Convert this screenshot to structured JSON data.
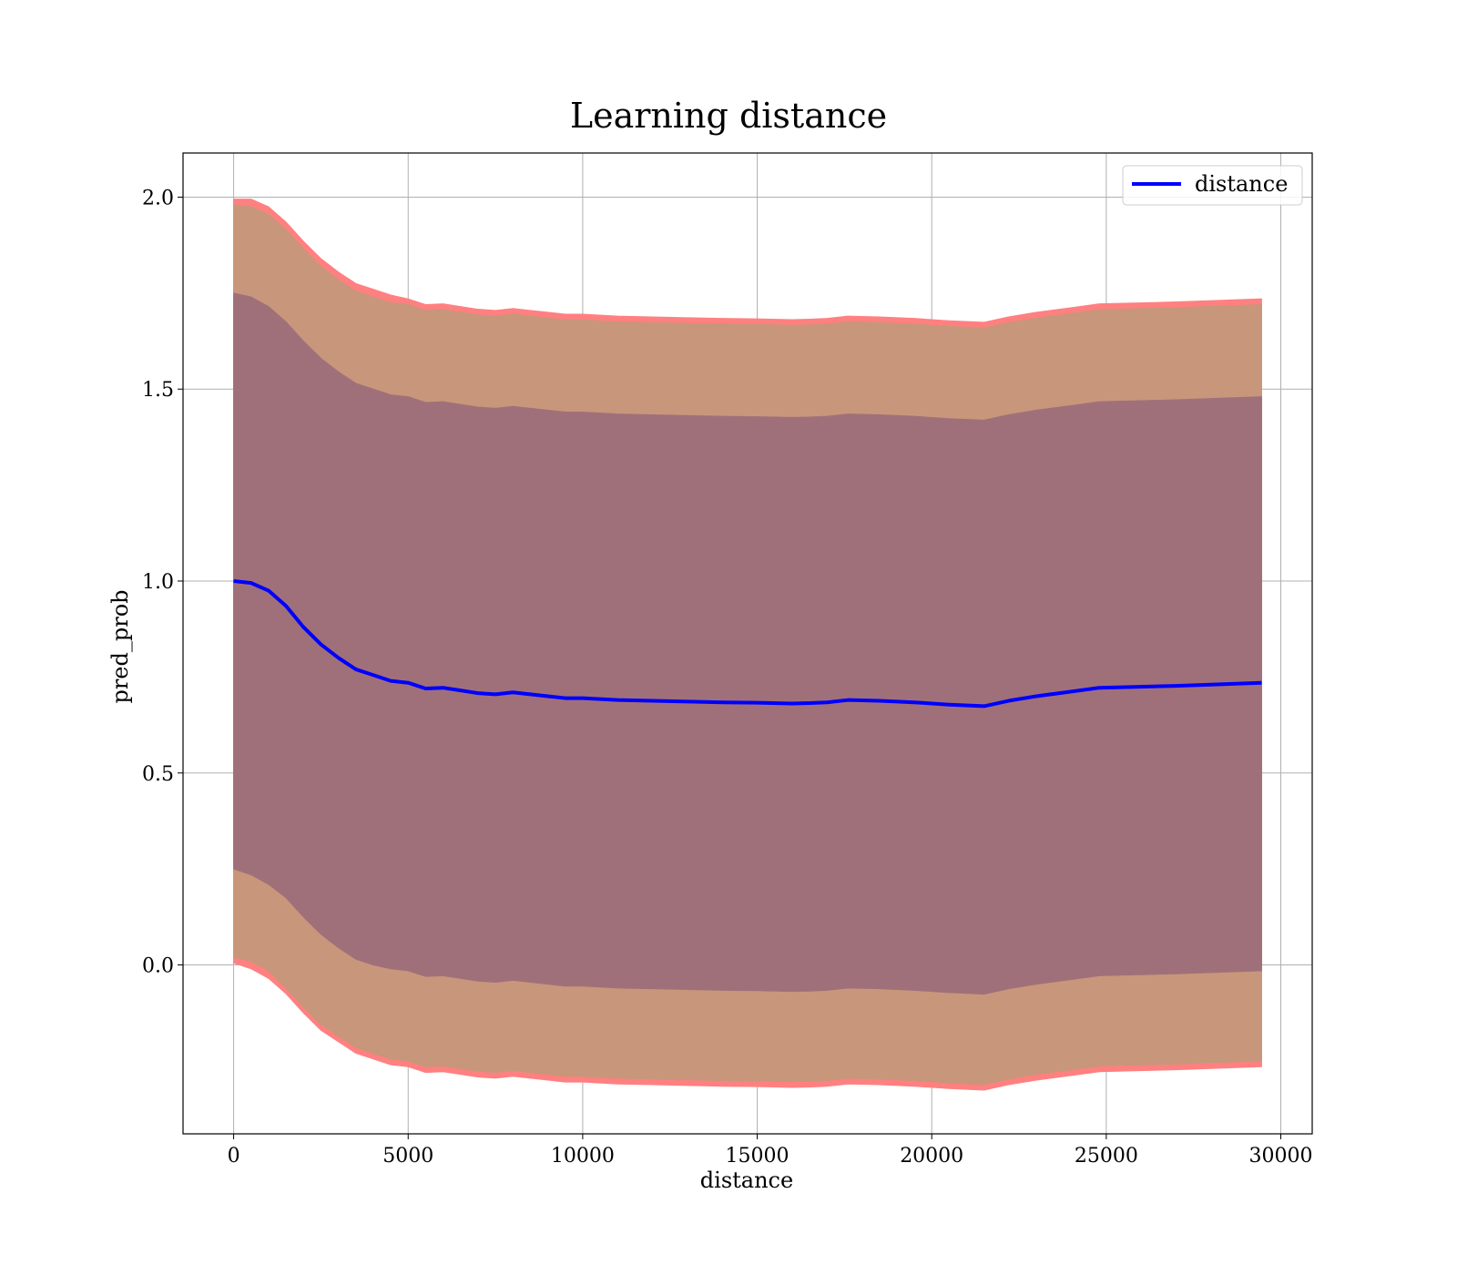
{
  "chart_data": {
    "type": "line",
    "title": "Learning distance",
    "xlabel": "distance",
    "ylabel": "pred_prob",
    "xlim": [
      -1450,
      30900
    ],
    "ylim": [
      -0.44,
      2.115
    ],
    "xticks": [
      0,
      5000,
      10000,
      15000,
      20000,
      25000,
      30000
    ],
    "xtick_labels": [
      "0",
      "5000",
      "10000",
      "15000",
      "20000",
      "25000",
      "30000"
    ],
    "yticks": [
      0.0,
      0.5,
      1.0,
      1.5,
      2.0
    ],
    "ytick_labels": [
      "0.0",
      "0.5",
      "1.0",
      "1.5",
      "2.0"
    ],
    "grid": true,
    "legend": {
      "position": "top-right",
      "entries": [
        "distance"
      ]
    },
    "colors": {
      "line": "#0000ff",
      "band_outer": "#ff8080",
      "band_middle": "#c8967a",
      "band_inner": "#a0707a"
    },
    "x": [
      0,
      500,
      1000,
      1500,
      2000,
      2500,
      3000,
      3500,
      4000,
      4500,
      5000,
      5500,
      6000,
      6500,
      7000,
      7500,
      8000,
      8500,
      9000,
      9500,
      10000,
      11000,
      12000,
      13000,
      14000,
      15000,
      16000,
      16500,
      17000,
      17600,
      18500,
      19500,
      20500,
      21500,
      22200,
      23000,
      24000,
      24800,
      27000,
      29450
    ],
    "series": [
      {
        "name": "distance",
        "values": [
          1.0,
          0.995,
          0.975,
          0.935,
          0.88,
          0.835,
          0.8,
          0.77,
          0.755,
          0.74,
          0.735,
          0.72,
          0.722,
          0.715,
          0.708,
          0.705,
          0.71,
          0.705,
          0.7,
          0.695,
          0.695,
          0.69,
          0.688,
          0.686,
          0.684,
          0.683,
          0.681,
          0.682,
          0.684,
          0.69,
          0.688,
          0.684,
          0.678,
          0.674,
          0.688,
          0.7,
          0.712,
          0.722,
          0.727,
          0.735
        ]
      }
    ],
    "bands": [
      {
        "lower": [
          0.005,
          -0.01,
          -0.035,
          -0.075,
          -0.125,
          -0.17,
          -0.2,
          -0.23,
          -0.245,
          -0.26,
          -0.265,
          -0.28,
          -0.278,
          -0.285,
          -0.292,
          -0.295,
          -0.29,
          -0.295,
          -0.3,
          -0.305,
          -0.305,
          -0.31,
          -0.312,
          -0.314,
          -0.316,
          -0.317,
          -0.319,
          -0.318,
          -0.316,
          -0.31,
          -0.312,
          -0.316,
          -0.322,
          -0.326,
          -0.312,
          -0.3,
          -0.288,
          -0.278,
          -0.273,
          -0.265
        ],
        "upper": [
          1.995,
          1.995,
          1.975,
          1.935,
          1.885,
          1.84,
          1.805,
          1.775,
          1.76,
          1.745,
          1.735,
          1.72,
          1.722,
          1.715,
          1.708,
          1.705,
          1.71,
          1.705,
          1.7,
          1.695,
          1.695,
          1.69,
          1.688,
          1.686,
          1.684,
          1.683,
          1.681,
          1.682,
          1.684,
          1.69,
          1.688,
          1.684,
          1.678,
          1.674,
          1.688,
          1.7,
          1.712,
          1.722,
          1.727,
          1.735
        ]
      },
      {
        "lower": [
          0.02,
          0.01,
          -0.015,
          -0.06,
          -0.11,
          -0.155,
          -0.185,
          -0.215,
          -0.23,
          -0.245,
          -0.25,
          -0.265,
          -0.263,
          -0.27,
          -0.277,
          -0.28,
          -0.275,
          -0.28,
          -0.285,
          -0.29,
          -0.29,
          -0.295,
          -0.297,
          -0.299,
          -0.301,
          -0.302,
          -0.304,
          -0.303,
          -0.301,
          -0.295,
          -0.297,
          -0.301,
          -0.307,
          -0.311,
          -0.297,
          -0.285,
          -0.273,
          -0.263,
          -0.258,
          -0.25
        ],
        "upper": [
          1.98,
          1.975,
          1.955,
          1.915,
          1.865,
          1.82,
          1.785,
          1.755,
          1.74,
          1.725,
          1.72,
          1.705,
          1.707,
          1.7,
          1.693,
          1.69,
          1.695,
          1.69,
          1.685,
          1.68,
          1.68,
          1.675,
          1.673,
          1.671,
          1.669,
          1.668,
          1.666,
          1.667,
          1.669,
          1.675,
          1.673,
          1.669,
          1.663,
          1.659,
          1.673,
          1.685,
          1.697,
          1.707,
          1.712,
          1.72
        ]
      },
      {
        "lower": [
          0.25,
          0.235,
          0.21,
          0.175,
          0.125,
          0.08,
          0.045,
          0.015,
          0.0,
          -0.01,
          -0.015,
          -0.03,
          -0.028,
          -0.035,
          -0.042,
          -0.045,
          -0.04,
          -0.045,
          -0.05,
          -0.055,
          -0.055,
          -0.06,
          -0.062,
          -0.064,
          -0.066,
          -0.067,
          -0.069,
          -0.068,
          -0.066,
          -0.06,
          -0.062,
          -0.066,
          -0.072,
          -0.076,
          -0.062,
          -0.05,
          -0.038,
          -0.028,
          -0.023,
          -0.015
        ],
        "upper": [
          1.75,
          1.74,
          1.715,
          1.675,
          1.625,
          1.58,
          1.545,
          1.515,
          1.5,
          1.485,
          1.48,
          1.465,
          1.467,
          1.46,
          1.453,
          1.45,
          1.455,
          1.45,
          1.445,
          1.44,
          1.44,
          1.435,
          1.433,
          1.431,
          1.429,
          1.428,
          1.426,
          1.427,
          1.429,
          1.435,
          1.433,
          1.429,
          1.423,
          1.419,
          1.433,
          1.445,
          1.457,
          1.467,
          1.472,
          1.48
        ]
      }
    ]
  }
}
